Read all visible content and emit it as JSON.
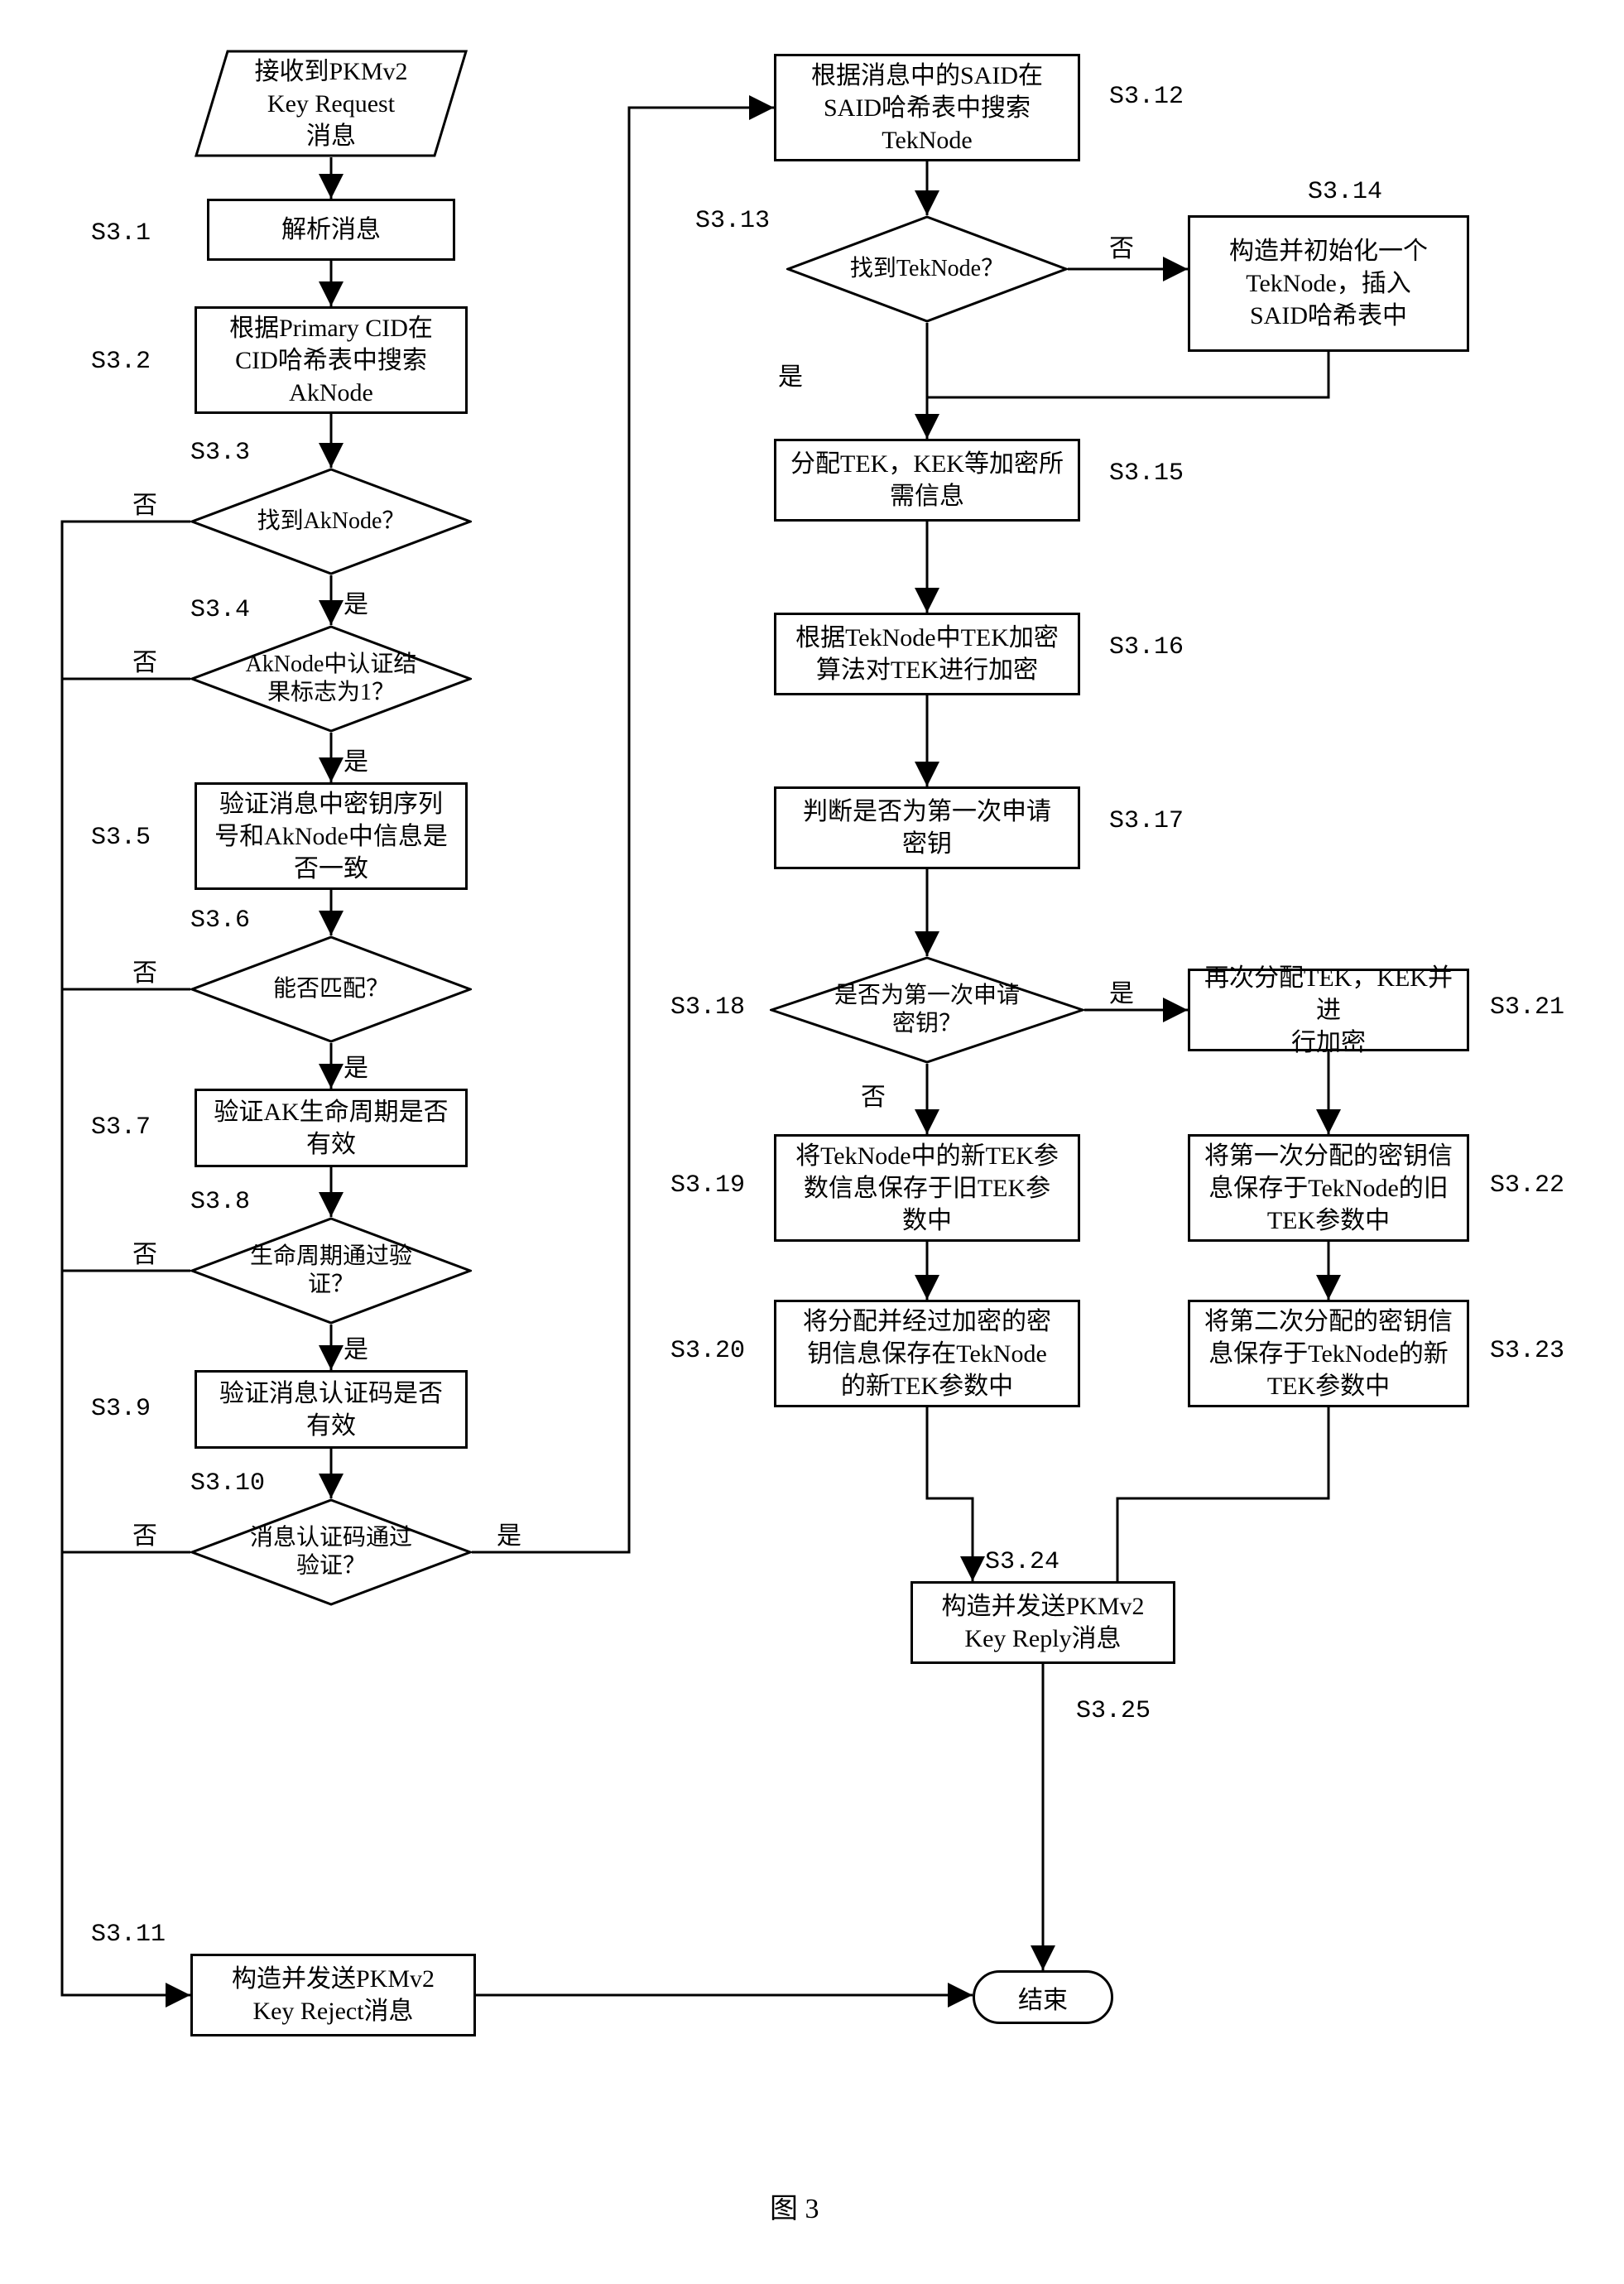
{
  "colors": {
    "stroke": "#000000",
    "background": "#ffffff",
    "text": "#000000"
  },
  "stroke_width": 3,
  "fonts": {
    "body": "SimSun",
    "label": "Courier New",
    "body_size": 30,
    "label_size": 30
  },
  "caption": "图 3",
  "labels": {
    "s3_1": "S3.1",
    "s3_2": "S3.2",
    "s3_3": "S3.3",
    "s3_4": "S3.4",
    "s3_5": "S3.5",
    "s3_6": "S3.6",
    "s3_7": "S3.7",
    "s3_8": "S3.8",
    "s3_9": "S3.9",
    "s3_10": "S3.10",
    "s3_11": "S3.11",
    "s3_12": "S3.12",
    "s3_13": "S3.13",
    "s3_14": "S3.14",
    "s3_15": "S3.15",
    "s3_16": "S3.16",
    "s3_17": "S3.17",
    "s3_18": "S3.18",
    "s3_19": "S3.19",
    "s3_20": "S3.20",
    "s3_21": "S3.21",
    "s3_22": "S3.22",
    "s3_23": "S3.23",
    "s3_24": "S3.24",
    "s3_25": "S3.25"
  },
  "branch_labels": {
    "yes": "是",
    "no": "否"
  },
  "nodes": {
    "start": "接收到PKMv2\nKey Request\n消息",
    "n1": "解析消息",
    "n2": "根据Primary CID在\nCID哈希表中搜索\nAkNode",
    "d3": "找到AkNode？",
    "d4": "AkNode中认证结\n果标志为1？",
    "n5": "验证消息中密钥序列\n号和AkNode中信息是\n否一致",
    "d6": "能否匹配？",
    "n7": "验证AK生命周期是否\n有效",
    "d8": "生命周期通过验\n证？",
    "n9": "验证消息认证码是否\n有效",
    "d10": "消息认证码通过\n验证？",
    "n11": "构造并发送PKMv2\nKey Reject消息",
    "n12": "根据消息中的SAID在\nSAID哈希表中搜索\nTekNode",
    "d13": "找到TekNode？",
    "n14": "构造并初始化一个\nTekNode，插入\nSAID哈希表中",
    "n15": "分配TEK，KEK等加密所\n需信息",
    "n16": "根据TekNode中TEK加密\n算法对TEK进行加密",
    "n17": "判断是否为第一次申请\n密钥",
    "d18": "是否为第一次申请\n密钥？",
    "n19": "将TekNode中的新TEK参\n数信息保存于旧TEK参\n数中",
    "n20": "将分配并经过加密的密\n钥信息保存在TekNode\n的新TEK参数中",
    "n21": "再次分配TEK，KEK并进\n行加密",
    "n22": "将第一次分配的密钥信\n息保存于TekNode的旧\nTEK参数中",
    "n23": "将第二次分配的密钥信\n息保存于TekNode的新\nTEK参数中",
    "n24": "构造并发送PKMv2\nKey Reply消息",
    "end": "结束"
  }
}
